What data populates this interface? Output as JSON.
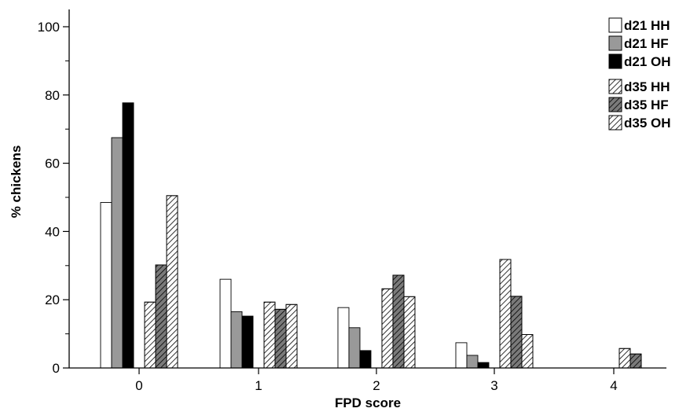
{
  "chart_data": {
    "type": "bar",
    "title": "",
    "xlabel": "FPD score",
    "ylabel": "% chickens",
    "categories": [
      "0",
      "1",
      "2",
      "3",
      "4"
    ],
    "yticks": [
      "0",
      "20",
      "40",
      "60",
      "80",
      "100"
    ],
    "ylim": [
      0,
      105
    ],
    "grid": false,
    "legend_position": "top-right",
    "series": [
      {
        "name": "d21 HH",
        "fill": "#ffffff",
        "hatch": false,
        "values": [
          48.5,
          26.0,
          17.7,
          7.4,
          0
        ]
      },
      {
        "name": "d21 HF",
        "fill": "#999999",
        "hatch": false,
        "values": [
          67.5,
          16.5,
          11.8,
          3.7,
          0
        ]
      },
      {
        "name": "d21 OH",
        "fill": "#000000",
        "hatch": false,
        "values": [
          77.7,
          15.2,
          5.1,
          1.6,
          0
        ]
      },
      {
        "name": "d35 HH",
        "fill": "#ffffff",
        "hatch": true,
        "values": [
          19.3,
          19.3,
          23.2,
          31.8,
          5.7
        ]
      },
      {
        "name": "d35 HF",
        "fill": "#7a7a7a",
        "hatch": true,
        "values": [
          30.2,
          17.2,
          27.2,
          21.0,
          4.1
        ]
      },
      {
        "name": "d35 OH",
        "fill": "#ffffff",
        "hatch": true,
        "values": [
          50.5,
          18.6,
          20.9,
          9.8,
          0
        ]
      }
    ]
  }
}
